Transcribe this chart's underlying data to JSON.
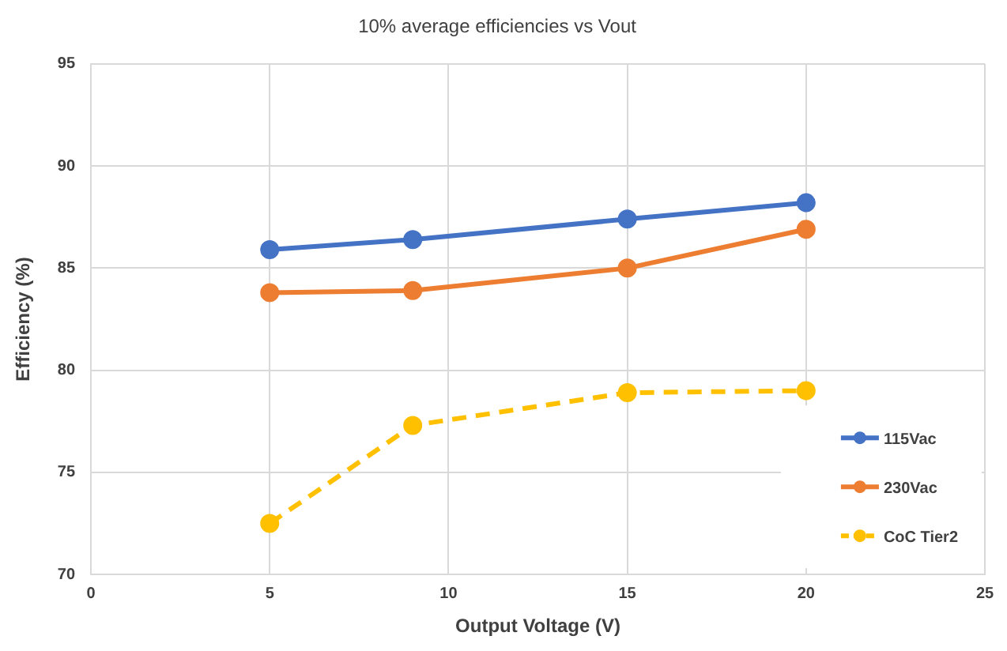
{
  "chart_data": {
    "type": "line",
    "title": "10% average efficiencies vs Vout",
    "xlabel": "Output Voltage (V)",
    "ylabel": "Efficiency (%)",
    "x": [
      5,
      9,
      15,
      20
    ],
    "series": [
      {
        "name": "115Vac",
        "color": "#4472c4",
        "values": [
          85.9,
          86.4,
          87.4,
          88.2
        ],
        "line_style": "solid"
      },
      {
        "name": "230Vac",
        "color": "#ed7d31",
        "values": [
          83.8,
          83.9,
          85.0,
          86.9
        ],
        "line_style": "solid"
      },
      {
        "name": "CoC Tier2",
        "color": "#ffc000",
        "values": [
          72.5,
          77.3,
          78.9,
          79.0
        ],
        "line_style": "dashed"
      }
    ],
    "xlim": [
      0,
      25
    ],
    "xticks": [
      0,
      5,
      10,
      15,
      20,
      25
    ],
    "ylim": [
      70,
      95
    ],
    "yticks": [
      70,
      75,
      80,
      85,
      90,
      95
    ],
    "grid": true,
    "legend": "bottom right",
    "marker": "circle"
  }
}
